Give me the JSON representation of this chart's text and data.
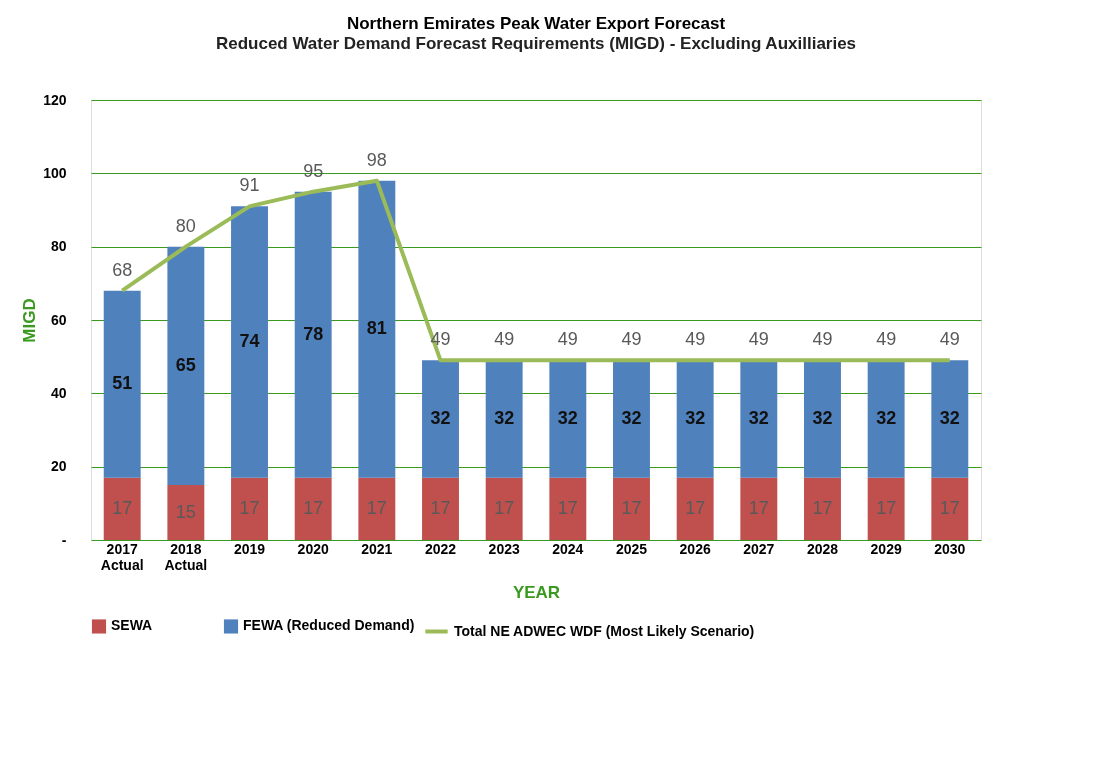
{
  "chart_data": {
    "type": "bar",
    "title": "Northern Emirates  Peak Water Export Forecast",
    "subtitle": "Reduced Water Demand Forecast Requirements  (MIGD) - Excluding Auxilliaries",
    "xlabel": "YEAR",
    "ylabel": "MIGD",
    "categories": [
      "2017\nActual",
      "2018\nActual",
      "2019",
      "2020",
      "2021",
      "2022",
      "2023",
      "2024",
      "2025",
      "2026",
      "2027",
      "2028",
      "2029",
      "2030"
    ],
    "series": [
      {
        "name": "SEWA",
        "color": "#c0504d",
        "values": [
          17,
          15,
          17,
          17,
          17,
          17,
          17,
          17,
          17,
          17,
          17,
          17,
          17,
          17
        ]
      },
      {
        "name": "FEWA (Reduced Demand)",
        "color": "#4f81bd",
        "values": [
          51,
          65,
          74,
          78,
          81,
          32,
          32,
          32,
          32,
          32,
          32,
          32,
          32,
          32
        ]
      },
      {
        "name": "Total NE ADWEC WDF (Most Likely Scenario)",
        "type": "line",
        "color": "#9bbb59",
        "values": [
          68,
          80,
          91,
          95,
          98,
          49,
          49,
          49,
          49,
          49,
          49,
          49,
          49,
          49
        ]
      }
    ],
    "stacked": true,
    "data_labels": true,
    "ylim": [
      0,
      120
    ],
    "yticks": [
      {
        "value": 0,
        "label": "-"
      },
      20,
      40,
      60,
      80,
      100,
      120
    ],
    "grid": "y",
    "legend": "bottom",
    "marker": "none"
  }
}
